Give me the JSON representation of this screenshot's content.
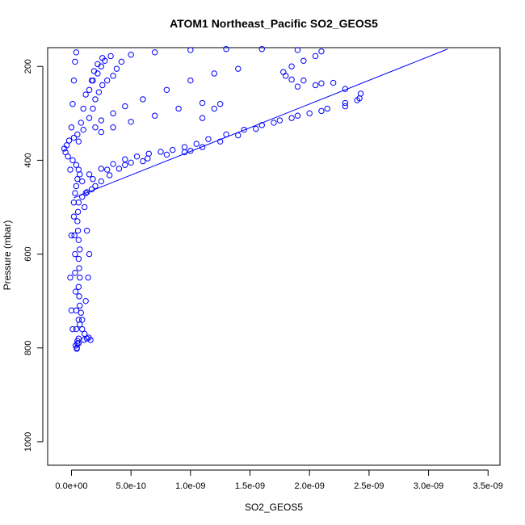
{
  "chart_data": {
    "type": "scatter",
    "title": "ATOM1 Northeast_Pacific SO2_GEOS5",
    "xlabel": "SO2_GEOS5",
    "ylabel": "Pressure (mbar)",
    "xlim": [
      -2e-10,
      3.6e-09
    ],
    "ylim": [
      1050,
      160
    ],
    "y_reversed": true,
    "grid": false,
    "legend": "none",
    "colors": {
      "series": "#0000ff",
      "axis": "#000000"
    },
    "x_ticks": [
      {
        "value": 0.0,
        "label": "0.0e+00"
      },
      {
        "value": 5e-10,
        "label": "5.0e-10"
      },
      {
        "value": 1e-09,
        "label": "1.0e-09"
      },
      {
        "value": 1.5e-09,
        "label": "1.5e-09"
      },
      {
        "value": 2e-09,
        "label": "2.0e-09"
      },
      {
        "value": 2.5e-09,
        "label": "2.5e-09"
      },
      {
        "value": 3e-09,
        "label": "3.0e-09"
      },
      {
        "value": 3.5e-09,
        "label": "3.5e-09"
      }
    ],
    "y_ticks": [
      {
        "value": 200,
        "label": "200"
      },
      {
        "value": 400,
        "label": "400"
      },
      {
        "value": 600,
        "label": "600"
      },
      {
        "value": 800,
        "label": "800"
      },
      {
        "value": 1000,
        "label": "1000"
      }
    ],
    "series": [
      {
        "points": [
          [
            4.5e-11,
            802
          ],
          [
            3.5e-11,
            795
          ],
          [
            6e-11,
            790
          ],
          [
            5e-11,
            785
          ],
          [
            1.05e-10,
            783
          ],
          [
            1.3e-10,
            780
          ],
          [
            1.6e-10,
            783
          ],
          [
            1.45e-10,
            778
          ],
          [
            1.1e-10,
            770
          ],
          [
            9e-11,
            760
          ],
          [
            7e-11,
            750
          ],
          [
            6e-11,
            740
          ],
          [
            8e-11,
            725
          ],
          [
            7e-11,
            710
          ],
          [
            6.5e-11,
            690
          ],
          [
            6e-11,
            670
          ],
          [
            7e-11,
            650
          ],
          [
            6.5e-11,
            630
          ],
          [
            6e-11,
            610
          ],
          [
            7e-11,
            590
          ],
          [
            6e-11,
            570
          ],
          [
            5.5e-11,
            550
          ],
          [
            5e-11,
            530
          ],
          [
            5.5e-11,
            510
          ],
          [
            6e-11,
            490
          ],
          [
            9e-11,
            478
          ],
          [
            1.3e-10,
            468
          ],
          [
            1.7e-10,
            462
          ],
          [
            2e-10,
            455
          ],
          [
            2.5e-10,
            445
          ],
          [
            3.2e-10,
            432
          ],
          [
            4e-10,
            418
          ],
          [
            5e-10,
            405
          ],
          [
            6.4e-10,
            396
          ],
          [
            8e-10,
            388
          ],
          [
            9.5e-10,
            383
          ],
          [
            1e-09,
            380
          ],
          [
            1.1e-09,
            372
          ],
          [
            1.25e-09,
            360
          ],
          [
            1.4e-09,
            347
          ],
          [
            1.55e-09,
            333
          ],
          [
            1.7e-09,
            320
          ],
          [
            1.85e-09,
            310
          ],
          [
            2e-09,
            300
          ],
          [
            2.15e-09,
            290
          ],
          [
            2.3e-09,
            278
          ],
          [
            2.42e-09,
            268
          ],
          [
            2.43e-09,
            258
          ],
          [
            2.3e-09,
            248
          ],
          [
            2.1e-09,
            236
          ],
          [
            1.95e-09,
            230
          ],
          [
            1.85e-09,
            228
          ],
          [
            1.8e-09,
            220
          ],
          [
            1.78e-09,
            212
          ],
          [
            1.85e-09,
            200
          ],
          [
            1.95e-09,
            188
          ],
          [
            2.05e-09,
            178
          ],
          [
            2.1e-09,
            168
          ],
          [
            1.9e-09,
            165
          ],
          [
            1.6e-09,
            163
          ],
          [
            1.3e-09,
            163
          ],
          [
            1e-09,
            165
          ],
          [
            7e-10,
            170
          ],
          [
            5e-10,
            175
          ],
          [
            4.2e-10,
            190
          ],
          [
            3.8e-10,
            205
          ],
          [
            3.5e-10,
            220
          ],
          [
            3e-10,
            230
          ],
          [
            2.6e-10,
            240
          ],
          [
            2.3e-10,
            255
          ],
          [
            2e-10,
            270
          ],
          [
            1.8e-10,
            290
          ],
          [
            1.5e-10,
            310
          ],
          [
            1e-10,
            335
          ],
          [
            5e-11,
            345
          ],
          [
            2e-11,
            352
          ],
          [
            -2e-11,
            358
          ],
          [
            -4e-11,
            368
          ],
          [
            -6e-11,
            375
          ],
          [
            -5e-11,
            383
          ],
          [
            -3e-11,
            392
          ],
          [
            1e-11,
            400
          ],
          [
            4e-11,
            410
          ],
          [
            6e-11,
            420
          ],
          [
            7e-11,
            430
          ],
          [
            5e-11,
            440
          ],
          [
            4e-11,
            455
          ],
          [
            3e-11,
            470
          ],
          [
            2e-11,
            490
          ],
          [
            2e-11,
            520
          ],
          [
            2.5e-11,
            560
          ],
          [
            3e-11,
            600
          ],
          [
            3e-11,
            640
          ],
          [
            3.5e-11,
            680
          ],
          [
            4e-11,
            720
          ],
          [
            4e-11,
            760
          ],
          [
            5e-11,
            790
          ],
          [
            4.5e-11,
            800
          ],
          [
            6e-11,
            780
          ],
          [
            9e-11,
            740
          ],
          [
            1.2e-10,
            700
          ],
          [
            1.4e-10,
            650
          ],
          [
            1.5e-10,
            600
          ],
          [
            1.3e-10,
            550
          ],
          [
            1.1e-10,
            500
          ],
          [
            1.2e-10,
            470
          ],
          [
            1.8e-10,
            440
          ],
          [
            3e-10,
            420
          ],
          [
            4.5e-10,
            410
          ],
          [
            6e-10,
            402
          ],
          [
            1.1e-09,
            310
          ],
          [
            1.2e-09,
            290
          ],
          [
            1.25e-09,
            280
          ],
          [
            1.1e-09,
            278
          ],
          [
            9e-10,
            290
          ],
          [
            7e-10,
            305
          ],
          [
            5e-10,
            318
          ],
          [
            3.5e-10,
            330
          ],
          [
            2.5e-10,
            340
          ],
          [
            2e-10,
            330
          ],
          [
            2.5e-10,
            315
          ],
          [
            3.5e-10,
            300
          ],
          [
            4.5e-10,
            285
          ],
          [
            6e-10,
            270
          ],
          [
            8e-10,
            250
          ],
          [
            1e-09,
            230
          ],
          [
            1.2e-09,
            215
          ],
          [
            1.4e-09,
            205
          ],
          [
            2.2e-09,
            235
          ],
          [
            2.05e-09,
            240
          ],
          [
            1.9e-09,
            243
          ],
          [
            2.4e-09,
            272
          ],
          [
            2.3e-09,
            285
          ],
          [
            2.1e-09,
            295
          ],
          [
            1.9e-09,
            305
          ],
          [
            1.75e-09,
            315
          ],
          [
            1.6e-09,
            325
          ],
          [
            1.45e-09,
            335
          ],
          [
            1.3e-09,
            345
          ],
          [
            1.15e-09,
            355
          ],
          [
            1.05e-09,
            365
          ],
          [
            9.5e-10,
            372
          ],
          [
            8.5e-10,
            378
          ],
          [
            7.5e-10,
            382
          ],
          [
            6.5e-10,
            386
          ],
          [
            5.5e-10,
            392
          ],
          [
            4.5e-10,
            398
          ],
          [
            3.5e-10,
            408
          ],
          [
            2.5e-10,
            418
          ],
          [
            1.5e-10,
            430
          ],
          [
            9e-11,
            445
          ],
          [
            1.5e-10,
            250
          ],
          [
            1.8e-10,
            230
          ],
          [
            2.2e-10,
            215
          ],
          [
            2.5e-10,
            200
          ],
          [
            2.8e-10,
            188
          ],
          [
            3.3e-10,
            178
          ],
          [
            2.6e-10,
            182
          ],
          [
            2.2e-10,
            195
          ],
          [
            1.9e-10,
            210
          ],
          [
            1.7e-10,
            230
          ],
          [
            1.2e-10,
            260
          ],
          [
            1e-10,
            290
          ],
          [
            8e-11,
            320
          ],
          [
            6e-11,
            360
          ],
          [
            4e-11,
            170
          ],
          [
            3e-11,
            190
          ],
          [
            2e-11,
            230
          ],
          [
            1e-11,
            280
          ],
          [
            0.0,
            330
          ],
          [
            -1e-11,
            420
          ],
          [
            0.0,
            560
          ],
          [
            -1e-11,
            650
          ],
          [
            0.0,
            720
          ],
          [
            1e-11,
            760
          ]
        ]
      }
    ],
    "line_segment": {
      "from": [
        2e-11,
        480
      ],
      "to": [
        3.16e-09,
        163
      ]
    }
  }
}
